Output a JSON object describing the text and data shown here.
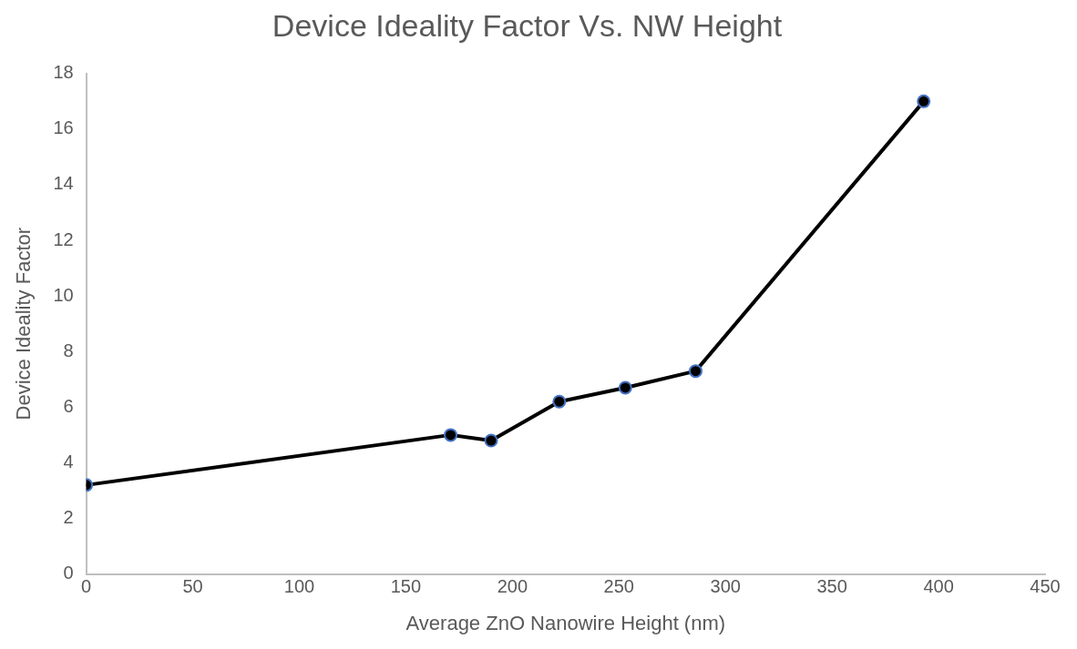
{
  "chart_data": {
    "type": "line",
    "title": "Device Ideality Factor Vs. NW Height",
    "xlabel": "Average ZnO Nanowire Height (nm)",
    "ylabel": "Device Ideality Factor",
    "x": [
      0,
      171,
      190,
      222,
      253,
      286,
      393
    ],
    "series": [
      {
        "color": "#000000",
        "values": [
          3.2,
          5.0,
          4.8,
          6.2,
          6.7,
          7.3,
          17.0
        ]
      }
    ],
    "xlim": [
      0,
      450
    ],
    "xticks": [
      0,
      50,
      100,
      150,
      200,
      250,
      300,
      350,
      400,
      450
    ],
    "ylim": [
      0,
      18
    ],
    "yticks": [
      0,
      2,
      4,
      6,
      8,
      10,
      12,
      14,
      16,
      18
    ],
    "grid": false,
    "legend": false,
    "marker": "circle",
    "line_style": "solid"
  }
}
